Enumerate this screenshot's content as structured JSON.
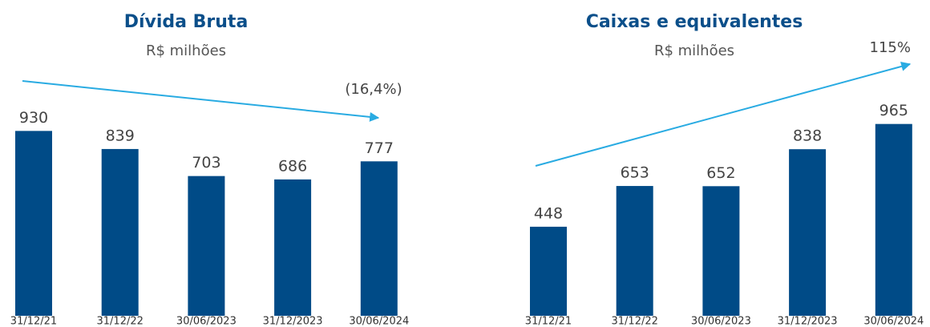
{
  "chart_data": [
    {
      "type": "bar",
      "title": "Dívida Bruta",
      "subtitle": "R$ milhões",
      "annotation": "(16,4%)",
      "categories": [
        "31/12/21",
        "31/12/22",
        "30/06/2023",
        "31/12/2023",
        "30/06/2024"
      ],
      "values": [
        930,
        839,
        703,
        686,
        777
      ],
      "color": "#004b87",
      "ylim": [
        0,
        1000
      ]
    },
    {
      "type": "bar",
      "title": "Caixas e equivalentes",
      "subtitle": "R$ milhões",
      "annotation": "115%",
      "categories": [
        "31/12/21",
        "31/12/22",
        "30/06/2023",
        "31/12/2023",
        "30/06/2024"
      ],
      "values": [
        448,
        653,
        652,
        838,
        965
      ],
      "color": "#004b87",
      "ylim": [
        0,
        1000
      ]
    }
  ]
}
